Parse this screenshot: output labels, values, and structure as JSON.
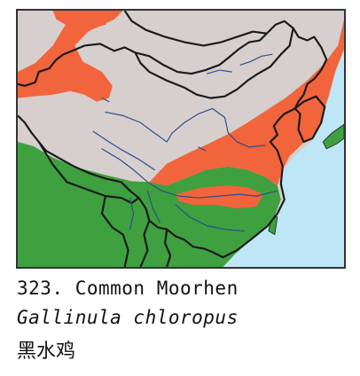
{
  "caption": {
    "title": "323. Common Moorhen",
    "scientific_name": "Gallinula chloropus",
    "chinese_name": "黑水鸡"
  },
  "colors": {
    "sea": "#bfe6f6",
    "land": "#d6cfcd",
    "breeding_range": "#f2643c",
    "resident_range": "#3fa03f",
    "borders": "#1a1a1a",
    "rivers": "#2c4f88"
  }
}
